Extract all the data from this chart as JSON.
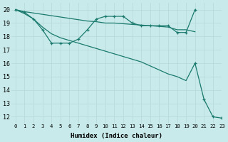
{
  "bg_color": "#c8eaea",
  "grid_color": "#d0e8e8",
  "line_color": "#1a7a6e",
  "xlabel": "Humidex (Indice chaleur)",
  "xlim": [
    -0.5,
    23
  ],
  "ylim": [
    11.5,
    20.5
  ],
  "yticks": [
    12,
    13,
    14,
    15,
    16,
    17,
    18,
    19,
    20
  ],
  "xticks": [
    0,
    1,
    2,
    3,
    4,
    5,
    6,
    7,
    8,
    9,
    10,
    11,
    12,
    13,
    14,
    15,
    16,
    17,
    18,
    19,
    20,
    21,
    22,
    23
  ],
  "series1_x": [
    0,
    1,
    2,
    3,
    4,
    5,
    6,
    7,
    8,
    9,
    10,
    11,
    12,
    13,
    14,
    15,
    16,
    17,
    18,
    19,
    20
  ],
  "series1_y": [
    20.0,
    19.85,
    19.75,
    19.65,
    19.55,
    19.45,
    19.35,
    19.25,
    19.15,
    19.1,
    19.0,
    19.0,
    18.95,
    18.9,
    18.85,
    18.8,
    18.75,
    18.7,
    18.5,
    18.5,
    18.35
  ],
  "series2_x": [
    0,
    1,
    2,
    3,
    4,
    5,
    6,
    7,
    8,
    9,
    10,
    11,
    12,
    13,
    14,
    15,
    16,
    17,
    18,
    19,
    20
  ],
  "series2_y": [
    20.0,
    19.8,
    19.3,
    18.5,
    17.5,
    17.5,
    17.5,
    17.8,
    18.5,
    19.3,
    19.5,
    19.5,
    19.5,
    19.0,
    18.8,
    18.8,
    18.8,
    18.8,
    18.3,
    18.3,
    20.0
  ],
  "series3_x": [
    0,
    1,
    2,
    3,
    4,
    5,
    6,
    7,
    8,
    9,
    10,
    11,
    12,
    13,
    14,
    15,
    16,
    17,
    18,
    19,
    20,
    21,
    22,
    23
  ],
  "series3_y": [
    20.0,
    19.7,
    19.3,
    18.7,
    18.2,
    17.9,
    17.7,
    17.5,
    17.3,
    17.1,
    16.9,
    16.7,
    16.5,
    16.3,
    16.1,
    15.8,
    15.5,
    15.2,
    15.0,
    14.7,
    16.0,
    13.3,
    12.0,
    11.9
  ]
}
